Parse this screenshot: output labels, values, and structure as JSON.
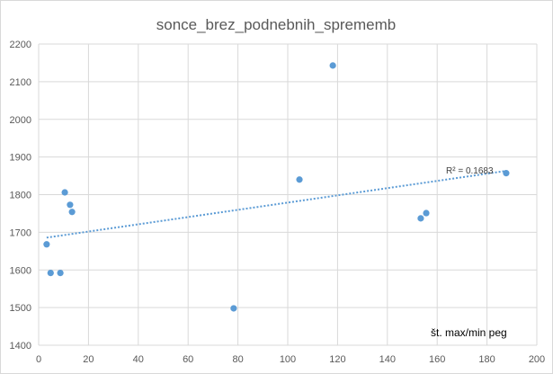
{
  "chart_data": {
    "type": "scatter",
    "title": "sonce_brez_podnebnih_sprememb",
    "xlabel": "",
    "ylabel": "",
    "xlim": [
      0,
      200
    ],
    "ylim": [
      1400,
      2200
    ],
    "xticks": [
      0,
      20,
      40,
      60,
      80,
      100,
      120,
      140,
      160,
      180,
      200
    ],
    "yticks": [
      1400,
      1500,
      1600,
      1700,
      1800,
      1900,
      2000,
      2100,
      2200
    ],
    "grid": true,
    "annotation": "št. max/min peg",
    "trendline": {
      "type": "linear",
      "label": "R² = 0.1683"
    },
    "series": [
      {
        "name": "sonce_brez_podnebnih_sprememb",
        "color": "#5b9bd5",
        "points": [
          [
            3.2,
            1668
          ],
          [
            4.8,
            1592
          ],
          [
            8.7,
            1592
          ],
          [
            10.5,
            1806
          ],
          [
            12.6,
            1773
          ],
          [
            13.4,
            1754
          ],
          [
            78.3,
            1498
          ],
          [
            104.7,
            1840
          ],
          [
            118.1,
            2143
          ],
          [
            153.4,
            1737
          ],
          [
            155.6,
            1751
          ],
          [
            187.7,
            1857
          ]
        ]
      }
    ]
  }
}
